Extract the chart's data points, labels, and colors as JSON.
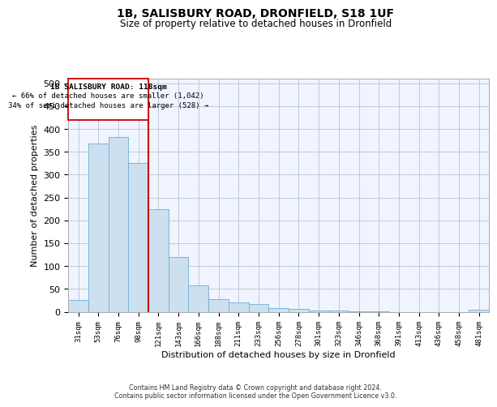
{
  "title_line1": "1B, SALISBURY ROAD, DRONFIELD, S18 1UF",
  "title_line2": "Size of property relative to detached houses in Dronfield",
  "xlabel": "Distribution of detached houses by size in Dronfield",
  "ylabel": "Number of detached properties",
  "footnote_line1": "Contains HM Land Registry data © Crown copyright and database right 2024.",
  "footnote_line2": "Contains public sector information licensed under the Open Government Licence v3.0.",
  "bar_labels": [
    "31sqm",
    "53sqm",
    "76sqm",
    "98sqm",
    "121sqm",
    "143sqm",
    "166sqm",
    "188sqm",
    "211sqm",
    "233sqm",
    "256sqm",
    "278sqm",
    "301sqm",
    "323sqm",
    "346sqm",
    "368sqm",
    "391sqm",
    "413sqm",
    "436sqm",
    "458sqm",
    "481sqm"
  ],
  "bar_values": [
    26,
    368,
    383,
    325,
    225,
    120,
    58,
    27,
    20,
    16,
    8,
    6,
    2,
    2,
    1,
    1,
    0,
    0,
    0,
    0,
    4
  ],
  "bar_color": "#cce0f0",
  "bar_edge_color": "#6baed6",
  "vline_x": 3.5,
  "vline_color": "#cc0000",
  "vline_label": "1B SALISBURY ROAD: 118sqm",
  "annotation_smaller": "← 66% of detached houses are smaller (1,042)",
  "annotation_larger": "34% of semi-detached houses are larger (528) →",
  "box_color": "#cc0000",
  "ylim": [
    0,
    510
  ],
  "yticks": [
    0,
    50,
    100,
    150,
    200,
    250,
    300,
    350,
    400,
    450,
    500
  ],
  "bg_color": "#f0f4ff",
  "grid_color": "#c0c8d8"
}
